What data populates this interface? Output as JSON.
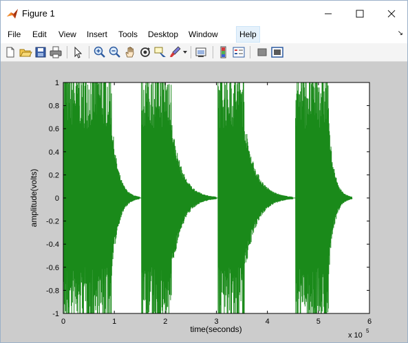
{
  "window": {
    "title": "Figure 1"
  },
  "menu": {
    "items": [
      "File",
      "Edit",
      "View",
      "Insert",
      "Tools",
      "Desktop",
      "Window",
      "Help"
    ],
    "active": "Help"
  },
  "toolbar": {
    "icons": [
      "new-figure-icon",
      "open-file-icon",
      "save-icon",
      "print-icon",
      "pointer-icon",
      "zoom-in-icon",
      "zoom-out-icon",
      "pan-hand-icon",
      "rotate-3d-icon",
      "data-cursor-icon",
      "brush-icon",
      "link-plot-icon",
      "colorbar-icon",
      "legend-icon",
      "hide-plot-tools-icon",
      "show-plot-tools-icon"
    ]
  },
  "chart_data": {
    "type": "line",
    "xlabel": "time(seconds)",
    "ylabel": "amplitude(volts)",
    "x_exponent": "x 10",
    "x_exponent_power": "5",
    "xlim": [
      0,
      6
    ],
    "ylim": [
      -1,
      1
    ],
    "xticks": [
      "0",
      "1",
      "2",
      "3",
      "4",
      "5",
      "6"
    ],
    "yticks": [
      "1",
      "0.8",
      "0.6",
      "0.4",
      "0.2",
      "0",
      "-0.2",
      "-0.4",
      "-0.6",
      "-0.8",
      "-1"
    ],
    "color": "#1a8a1a",
    "grid": false,
    "signal": "four decaying oscillation bursts (scaled x 1e5)",
    "bursts": [
      {
        "start": 0.0,
        "strong_end": 0.95,
        "decay_end": 1.5
      },
      {
        "start": 1.53,
        "strong_end": 2.12,
        "decay_end": 3.0
      },
      {
        "start": 3.03,
        "strong_end": 3.55,
        "decay_end": 4.5
      },
      {
        "start": 4.55,
        "strong_end": 5.2,
        "decay_end": 5.66
      }
    ]
  }
}
